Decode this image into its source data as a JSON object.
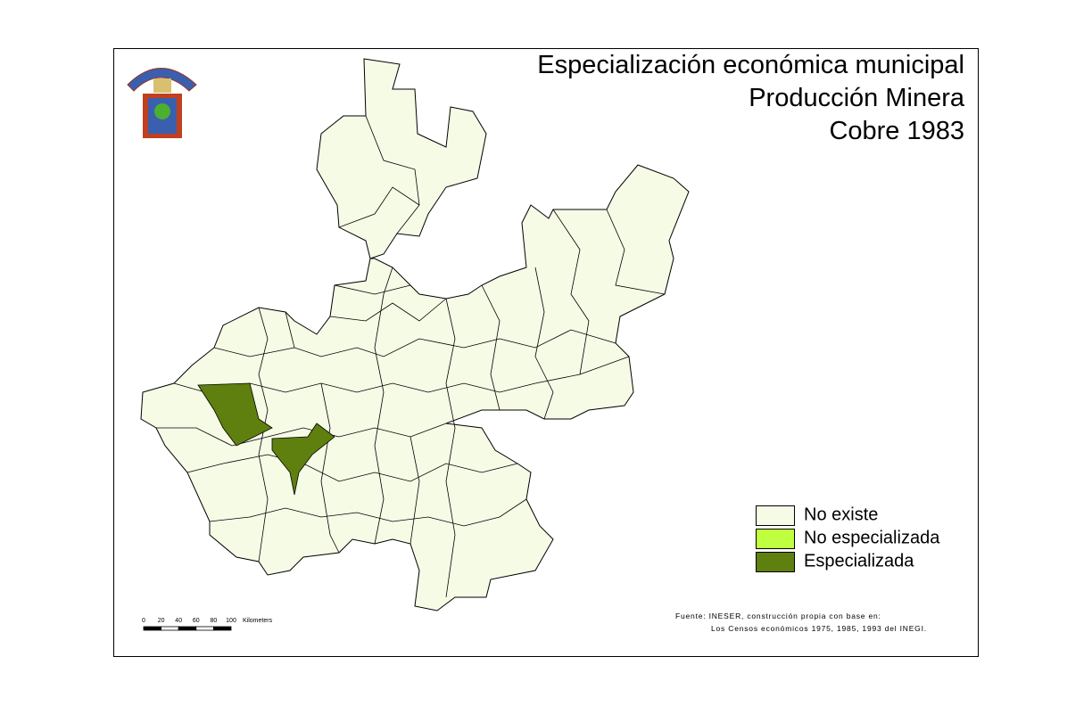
{
  "header": {
    "title_lines": [
      "Especialización económica municipal",
      "Producción Minera",
      "Cobre 1983"
    ]
  },
  "legend": [
    {
      "label": "No existe",
      "color": "#f6fbe6"
    },
    {
      "label": "No especializada",
      "color": "#bfff3f"
    },
    {
      "label": "Especializada",
      "color": "#5f7f0f"
    }
  ],
  "scale_bar": {
    "ticks": [
      0,
      20,
      40,
      60,
      80,
      100
    ],
    "unit": "Kilometers"
  },
  "source": [
    "Fuente: INESER, construcción propia con base en:",
    "Los Censos económicos 1975, 1985, 1993 del INEGI."
  ]
}
